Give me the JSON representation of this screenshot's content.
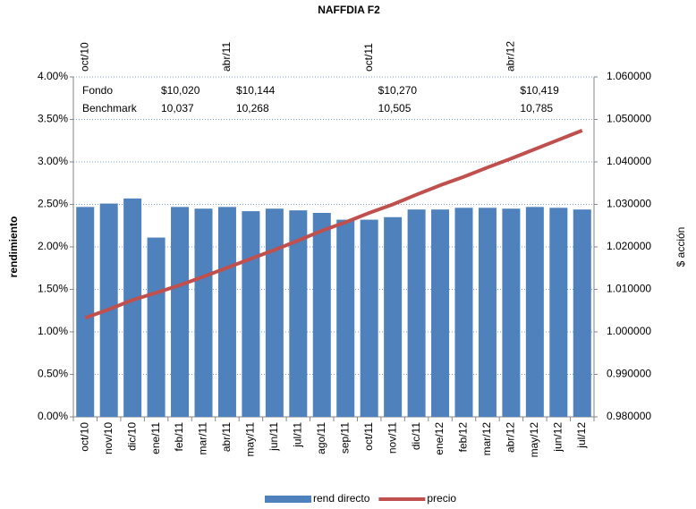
{
  "chart_data": {
    "type": "bar_line",
    "title": "NAFFDIA F2",
    "y_label": "rendimiento",
    "y2_label": "$ acción",
    "categories": [
      "oct/10",
      "nov/10",
      "dic/10",
      "ene/11",
      "feb/11",
      "mar/11",
      "abr/11",
      "may/11",
      "jun/11",
      "jul/11",
      "ago/11",
      "sep/11",
      "oct/11",
      "nov/11",
      "dic/11",
      "ene/12",
      "feb/12",
      "mar/12",
      "abr/12",
      "may/12",
      "jun/12",
      "jul/12"
    ],
    "series": [
      {
        "name": "rend directo",
        "type": "bar",
        "color": "#4f81bd",
        "values": [
          2.47,
          2.51,
          2.57,
          2.11,
          2.47,
          2.45,
          2.47,
          2.42,
          2.45,
          2.43,
          2.4,
          2.32,
          2.32,
          2.35,
          2.44,
          2.44,
          2.46,
          2.46,
          2.45,
          2.47,
          2.46,
          2.44
        ]
      },
      {
        "name": "precio",
        "type": "line",
        "axis": "y2",
        "color": "#c0504d",
        "values": [
          1.0033,
          1.0053,
          1.0075,
          1.0092,
          1.011,
          1.013,
          1.0151,
          1.0172,
          1.0193,
          1.0215,
          1.0238,
          1.0258,
          1.028,
          1.03,
          1.0323,
          1.0345,
          1.0365,
          1.0387,
          1.0408,
          1.043,
          1.0452,
          1.0474
        ]
      }
    ],
    "ylim": [
      0,
      4
    ],
    "yticks": [
      {
        "value": 0,
        "label": "0.00%"
      },
      {
        "value": 0.5,
        "label": "0.50%"
      },
      {
        "value": 1,
        "label": "1.00%"
      },
      {
        "value": 1.5,
        "label": "1.50%"
      },
      {
        "value": 2,
        "label": "2.00%"
      },
      {
        "value": 2.5,
        "label": "2.50%"
      },
      {
        "value": 3,
        "label": "3.00%"
      },
      {
        "value": 3.5,
        "label": "3.50%"
      },
      {
        "value": 4,
        "label": "4.00%"
      }
    ],
    "y2lim": [
      0.98,
      1.06
    ],
    "y2ticks": [
      {
        "value": 0.98,
        "label": "0.980000"
      },
      {
        "value": 0.99,
        "label": "0.990000"
      },
      {
        "value": 1,
        "label": "1.000000"
      },
      {
        "value": 1.01,
        "label": "1.010000"
      },
      {
        "value": 1.02,
        "label": "1.020000"
      },
      {
        "value": 1.03,
        "label": "1.030000"
      },
      {
        "value": 1.04,
        "label": "1.040000"
      },
      {
        "value": 1.05,
        "label": "1.050000"
      },
      {
        "value": 1.06,
        "label": "1.060000"
      }
    ],
    "grid": true,
    "legend": "bottom",
    "top_axis_labels": [
      "oct/10",
      "abr/11",
      "oct/11",
      "abr/12"
    ],
    "annotation_rows": [
      {
        "name": "Fondo",
        "values": [
          "$10,020",
          "$10,144",
          "$10,270",
          "$10,419"
        ]
      },
      {
        "name": "Benchmark",
        "values": [
          "10,037",
          "10,268",
          "10,505",
          "10,785"
        ]
      }
    ]
  }
}
